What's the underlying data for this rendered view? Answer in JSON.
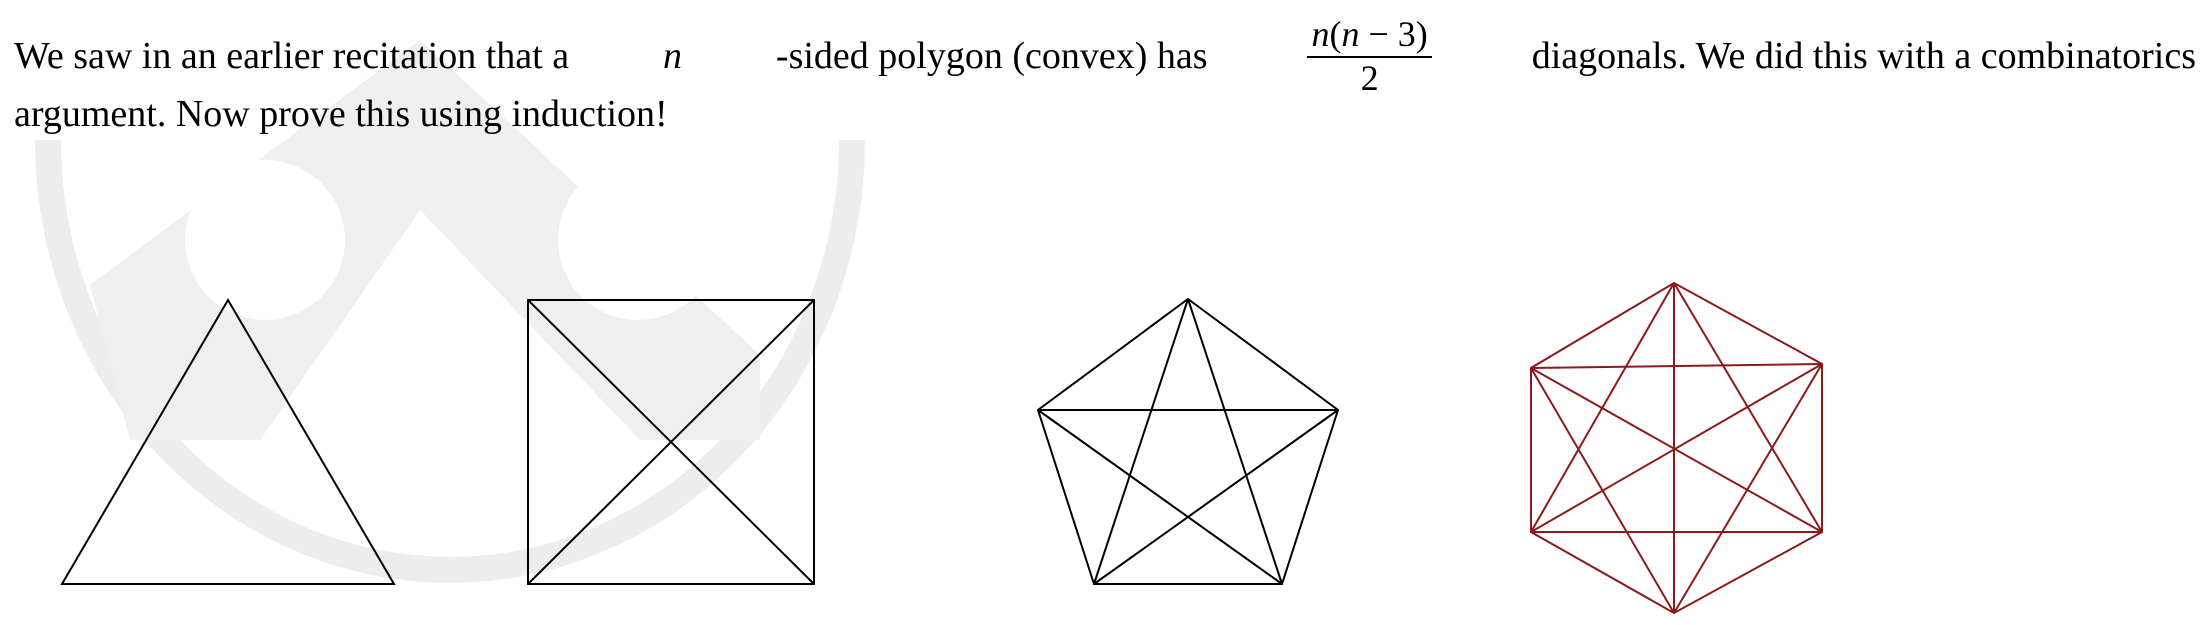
{
  "problem": {
    "line1_before": "We saw in an earlier recitation that a",
    "var_n": "n",
    "line1_after_var": "-sided polygon (convex) has",
    "fraction_numerator": {
      "n_first": "n",
      "open_paren": "(",
      "n_second": "n",
      "rest": " − 3)"
    },
    "fraction_denominator": "2",
    "line1_end": "diagonals. We did this with a combinatorics",
    "line2": "argument. Now prove this using induction!"
  },
  "figures": {
    "triangle": {
      "sides": 3,
      "diagonals": 0
    },
    "square": {
      "sides": 4,
      "diagonals": 2
    },
    "pentagon": {
      "sides": 5,
      "diagonals": 5
    },
    "hexagon": {
      "sides": 6,
      "diagonals": 9
    }
  },
  "colors": {
    "text": "#000000",
    "polygon_stroke": "#000000",
    "hexagon_stroke": "#8b1a1a",
    "watermark": "#ebebeb"
  }
}
